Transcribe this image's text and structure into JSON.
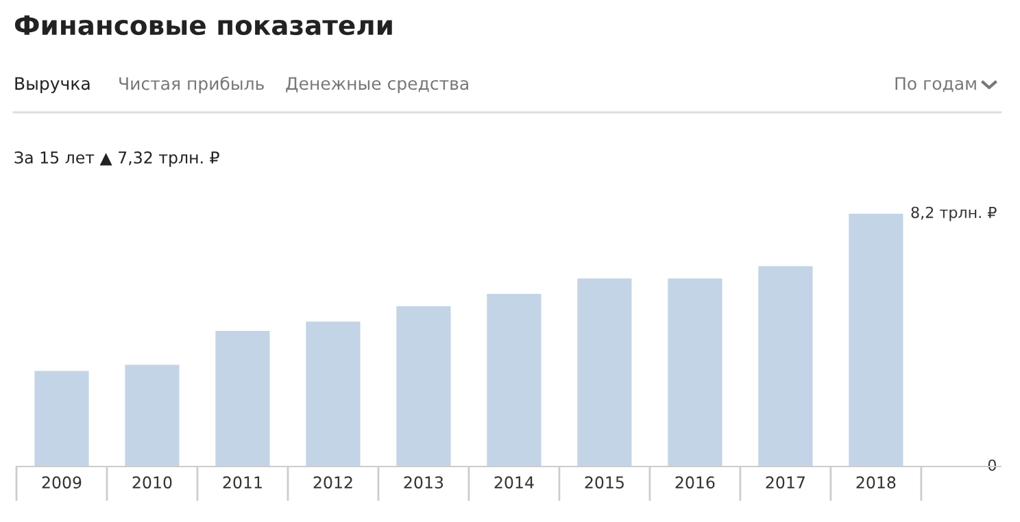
{
  "chart_data": {
    "type": "bar",
    "title": "Финансовые показатели",
    "subtitle": "За 15 лет ▲ 7,32 трлн. ₽",
    "annotations": [
      "Выручка",
      "Чистая прибыль",
      "Денежные средства",
      "По годам"
    ],
    "categories": [
      "2009",
      "2010",
      "2011",
      "2012",
      "2013",
      "2014",
      "2015",
      "2016",
      "2017",
      "2018"
    ],
    "values": [
      3.1,
      3.3,
      4.4,
      4.7,
      5.2,
      5.6,
      6.1,
      6.1,
      6.5,
      8.2
    ],
    "color": "#c3d4e6",
    "ylim": [
      0,
      8.2
    ],
    "yticks": [
      0,
      {
        "value": 8.2,
        "label": "8,2 трлн. ₽"
      }
    ],
    "grid": false,
    "legend": false
  }
}
